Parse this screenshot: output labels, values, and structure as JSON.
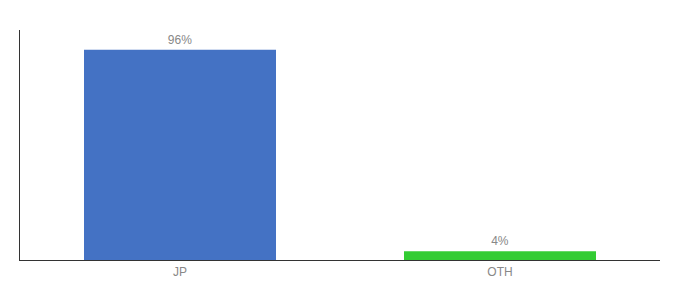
{
  "chart_data": {
    "type": "bar",
    "categories": [
      "JP",
      "OTH"
    ],
    "values": [
      96,
      4
    ],
    "value_labels": [
      "96%",
      "4%"
    ],
    "data_labels": true,
    "colors": [
      "#4472c4",
      "#33cc33"
    ],
    "ylim": [
      0,
      105
    ],
    "grid": false,
    "tick_labels": "x"
  }
}
